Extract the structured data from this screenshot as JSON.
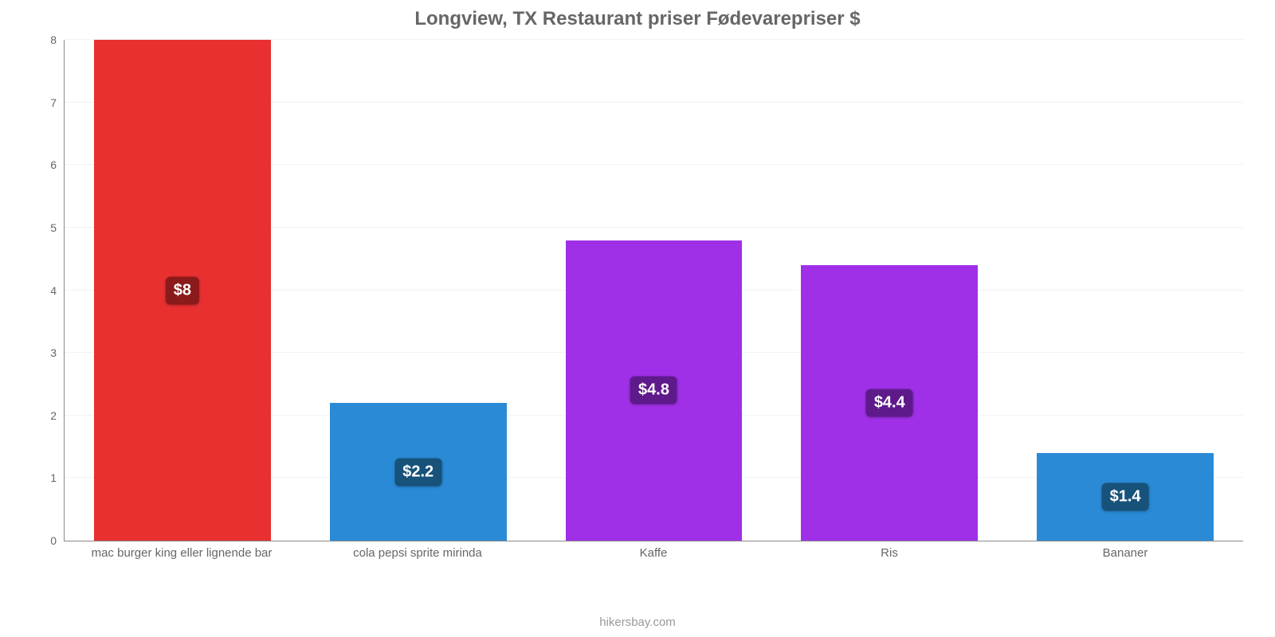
{
  "chart": {
    "type": "bar",
    "title": "Longview, TX Restaurant priser Fødevarepriser $",
    "title_fontsize": 24,
    "title_color": "#666666",
    "categories": [
      "mac burger king eller lignende bar",
      "cola pepsi sprite mirinda",
      "Kaffe",
      "Ris",
      "Bananer"
    ],
    "values": [
      8,
      2.2,
      4.8,
      4.4,
      1.4
    ],
    "value_labels": [
      "$8",
      "$2.2",
      "$4.8",
      "$4.4",
      "$1.4"
    ],
    "bar_colors": [
      "#e83030",
      "#2a8ad6",
      "#a030e8",
      "#a030e8",
      "#2a8ad6"
    ],
    "label_bg_colors": [
      "#8b1a1a",
      "#16527a",
      "#5e1a8b",
      "#5e1a8b",
      "#16527a"
    ],
    "ylim": [
      0,
      8
    ],
    "yticks": [
      0,
      1,
      2,
      3,
      4,
      5,
      6,
      7,
      8
    ],
    "background_color": "#ffffff",
    "grid_color": "#f2f2f2",
    "axis_color": "#888888",
    "bar_width_pct": 75,
    "xlabel_fontsize": 15,
    "ylabel_fontsize": 14,
    "value_label_fontsize": 20,
    "attribution": "hikersbay.com",
    "attribution_color": "#999999",
    "attribution_fontsize": 15
  }
}
